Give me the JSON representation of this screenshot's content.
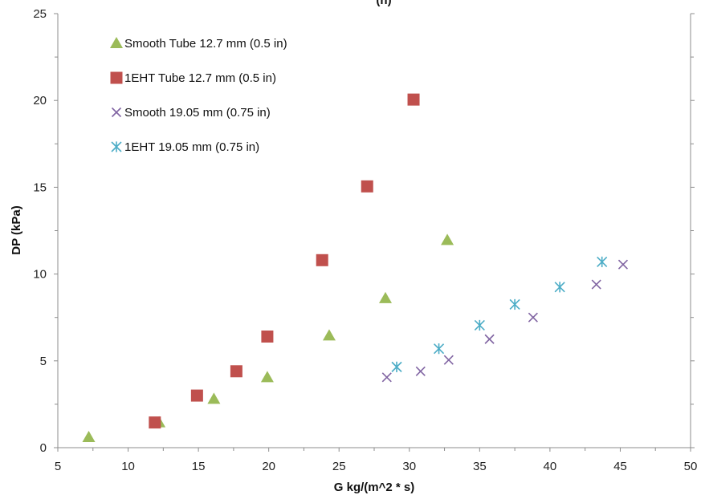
{
  "chart_data": {
    "type": "scatter",
    "title": "(h)",
    "xlabel": "G kg/(m^2 * s)",
    "ylabel": "DP (kPa)",
    "xlim": [
      5,
      50
    ],
    "ylim": [
      0,
      25
    ],
    "x_ticks": [
      5,
      10,
      15,
      20,
      25,
      30,
      35,
      40,
      45,
      50
    ],
    "y_ticks": [
      0,
      5,
      10,
      15,
      20,
      25
    ],
    "grid": false,
    "legend_position": "top-left",
    "series": [
      {
        "name": "Smooth Tube   12.7 mm (0.5 in)",
        "marker": "triangle",
        "color": "#9bbb59",
        "points": [
          [
            7.2,
            0.6
          ],
          [
            12.2,
            1.45
          ],
          [
            16.1,
            2.8
          ],
          [
            19.9,
            4.05
          ],
          [
            24.3,
            6.45
          ],
          [
            28.3,
            8.6
          ],
          [
            32.7,
            11.95
          ]
        ]
      },
      {
        "name": "1EHT Tube 12.7 mm (0.5 in)",
        "marker": "square",
        "color": "#c0504d",
        "points": [
          [
            11.9,
            1.45
          ],
          [
            14.9,
            3.0
          ],
          [
            17.7,
            4.4
          ],
          [
            19.9,
            6.4
          ],
          [
            23.8,
            10.8
          ],
          [
            27.0,
            15.05
          ],
          [
            30.3,
            20.05
          ]
        ]
      },
      {
        "name": "Smooth   19.05 mm (0.75 in)",
        "marker": "x",
        "color": "#8064a2",
        "points": [
          [
            28.4,
            4.05
          ],
          [
            30.8,
            4.4
          ],
          [
            32.8,
            5.05
          ],
          [
            35.7,
            6.25
          ],
          [
            38.8,
            7.5
          ],
          [
            43.3,
            9.4
          ],
          [
            45.2,
            10.55
          ]
        ]
      },
      {
        "name": "1EHT   19.05 mm (0.75 in)",
        "marker": "star",
        "color": "#4bacc6",
        "points": [
          [
            29.1,
            4.65
          ],
          [
            32.1,
            5.7
          ],
          [
            35.0,
            7.05
          ],
          [
            37.5,
            8.25
          ],
          [
            40.7,
            9.25
          ],
          [
            43.7,
            10.7
          ]
        ]
      }
    ]
  }
}
